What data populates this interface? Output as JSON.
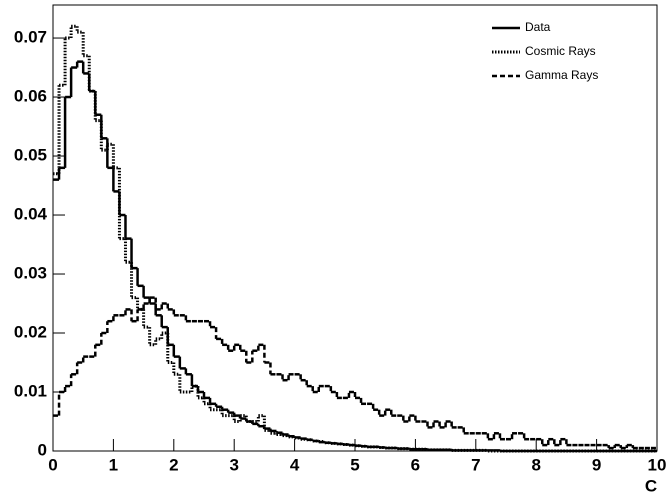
{
  "chart_data": {
    "type": "histogram",
    "x_label": "C",
    "bins": [
      0,
      0.1,
      0.2,
      0.3,
      0.4,
      0.5,
      0.6,
      0.7,
      0.8,
      0.9,
      1,
      1.1,
      1.2,
      1.3,
      1.4,
      1.5,
      1.6,
      1.7,
      1.8,
      1.9,
      2,
      2.1,
      2.2,
      2.3,
      2.4,
      2.5,
      2.6,
      2.7,
      2.8,
      2.9,
      3,
      3.1,
      3.2,
      3.3,
      3.4,
      3.5,
      3.6,
      3.7,
      3.8,
      3.9,
      4,
      4.1,
      4.2,
      4.3,
      4.4,
      4.5,
      4.6,
      4.7,
      4.8,
      4.9,
      5,
      5.1,
      5.2,
      5.3,
      5.4,
      5.5,
      5.6,
      5.7,
      5.8,
      5.9,
      6,
      6.1,
      6.2,
      6.3,
      6.4,
      6.5,
      6.6,
      6.7,
      6.8,
      6.9,
      7,
      7.1,
      7.2,
      7.3,
      7.4,
      7.5,
      7.6,
      7.7,
      7.8,
      7.9,
      8,
      8.1,
      8.2,
      8.3,
      8.4,
      8.5,
      8.6,
      8.7,
      8.8,
      8.9,
      9,
      9.1,
      9.2,
      9.3,
      9.4,
      9.5,
      9.6,
      9.7,
      9.8,
      9.9,
      10
    ],
    "series": [
      {
        "name": "Data",
        "color": "#000000",
        "style": "solid",
        "values": [
          0.046,
          0.048,
          0.06,
          0.065,
          0.066,
          0.064,
          0.061,
          0.057,
          0.053,
          0.048,
          0.044,
          0.04,
          0.036,
          0.031,
          0.028,
          0.026,
          0.025,
          0.023,
          0.021,
          0.018,
          0.016,
          0.014,
          0.013,
          0.011,
          0.01,
          0.009,
          0.008,
          0.0075,
          0.007,
          0.0065,
          0.006,
          0.0055,
          0.005,
          0.0046,
          0.0042,
          0.0038,
          0.0034,
          0.0031,
          0.0028,
          0.0025,
          0.0023,
          0.0021,
          0.0019,
          0.0017,
          0.0015,
          0.0014,
          0.0013,
          0.0012,
          0.0011,
          0.001,
          0.0009,
          0.0008,
          0.0007,
          0.0007,
          0.0006,
          0.0005,
          0.0005,
          0.0004,
          0.0004,
          0.0003,
          0.0003,
          0.0003,
          0.0002,
          0.0002,
          0.0002,
          0.0002,
          0.0001,
          0.0001,
          0.0001,
          0.0001,
          0.0001,
          0.0001,
          0.0001,
          0.0001,
          0,
          0,
          0,
          0,
          0,
          0,
          0,
          0,
          0,
          0,
          0,
          0,
          0,
          0,
          0,
          0,
          0,
          0,
          0,
          0,
          0,
          0,
          0,
          0,
          0,
          0
        ]
      },
      {
        "name": "Cosmic Rays",
        "color": "#000000",
        "style": "dotted",
        "values": [
          0.047,
          0.062,
          0.07,
          0.072,
          0.071,
          0.067,
          0.061,
          0.056,
          0.051,
          0.052,
          0.048,
          0.036,
          0.032,
          0.026,
          0.024,
          0.021,
          0.018,
          0.019,
          0.02,
          0.015,
          0.013,
          0.01,
          0.01,
          0.011,
          0.009,
          0.008,
          0.007,
          0.007,
          0.006,
          0.006,
          0.005,
          0.006,
          0.005,
          0.005,
          0.006,
          0.0035,
          0.003,
          0.0028,
          0.0026,
          0.0024,
          0.0022,
          0.002,
          0.0019,
          0.0017,
          0.0016,
          0.0014,
          0.0013,
          0.0012,
          0.0011,
          0.001,
          0.0009,
          0.0008,
          0.0007,
          0.0007,
          0.0006,
          0.0005,
          0.0005,
          0.0004,
          0.0004,
          0.0003,
          0.0003,
          0.0003,
          0.0002,
          0.0002,
          0.0002,
          0.0002,
          0.0001,
          0.0001,
          0.0001,
          0.0001,
          0.0001,
          0.0001,
          0,
          0,
          0,
          0,
          0,
          0,
          0,
          0,
          0,
          0,
          0,
          0,
          0,
          0,
          0,
          0,
          0,
          0,
          0,
          0,
          0,
          0,
          0,
          0,
          0,
          0,
          0,
          0
        ]
      },
      {
        "name": "Gamma Rays",
        "color": "#000000",
        "style": "dashed",
        "values": [
          0.006,
          0.01,
          0.011,
          0.013,
          0.015,
          0.016,
          0.016,
          0.018,
          0.02,
          0.022,
          0.023,
          0.023,
          0.024,
          0.022,
          0.024,
          0.025,
          0.026,
          0.024,
          0.025,
          0.024,
          0.023,
          0.023,
          0.022,
          0.022,
          0.022,
          0.022,
          0.021,
          0.019,
          0.018,
          0.017,
          0.018,
          0.017,
          0.015,
          0.017,
          0.018,
          0.015,
          0.013,
          0.013,
          0.012,
          0.013,
          0.013,
          0.012,
          0.011,
          0.01,
          0.011,
          0.011,
          0.01,
          0.009,
          0.009,
          0.01,
          0.009,
          0.008,
          0.008,
          0.007,
          0.006,
          0.007,
          0.006,
          0.006,
          0.005,
          0.006,
          0.005,
          0.005,
          0.004,
          0.005,
          0.004,
          0.005,
          0.004,
          0.004,
          0.003,
          0.003,
          0.003,
          0.003,
          0.002,
          0.003,
          0.002,
          0.002,
          0.003,
          0.003,
          0.002,
          0.002,
          0.002,
          0.001,
          0.002,
          0.001,
          0.002,
          0.001,
          0.001,
          0.001,
          0.001,
          0.001,
          0.001,
          0.001,
          0.0005,
          0.001,
          0.0005,
          0.001,
          0.0005,
          0.0005,
          0.0005,
          0.0005
        ]
      }
    ],
    "xlim": [
      0,
      10
    ],
    "ylim": [
      0,
      0.0756
    ],
    "xticks": [
      0,
      1,
      2,
      3,
      4,
      5,
      6,
      7,
      8,
      9,
      10
    ],
    "yticks": [
      0,
      0.01,
      0.02,
      0.03,
      0.04,
      0.05,
      0.06,
      0.07
    ],
    "legend": "upper right"
  }
}
